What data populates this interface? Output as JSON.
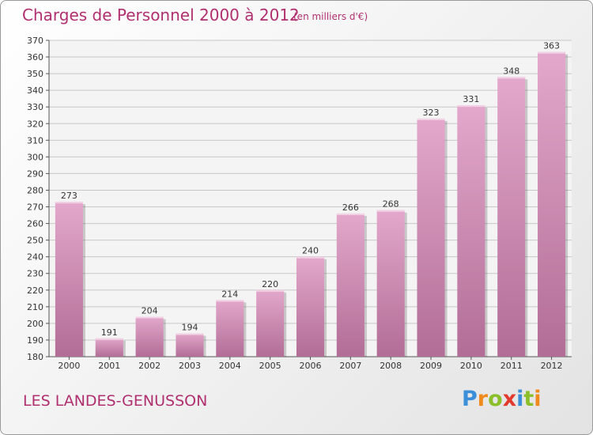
{
  "header": {
    "title": "Charges de Personnel 2000 à 2012",
    "subtitle": "(en milliers d'€)"
  },
  "footer": {
    "location": "LES LANDES-GENUSSON",
    "logo_text": "Proxiti"
  },
  "colors": {
    "bar_top": "#e3a8cc",
    "bar_bottom": "#b26d96",
    "bar_highlight": "#f2d2e4",
    "title": "#b0306f",
    "grid": "#c8c8c8",
    "logo_letters": [
      "#3b8fd9",
      "#f08a1c",
      "#8bbf2a",
      "#e23b2e",
      "#3b8fd9",
      "#8bbf2a",
      "#f08a1c"
    ]
  },
  "chart_data": {
    "type": "bar",
    "title": "Charges de Personnel 2000 à 2012",
    "subtitle": "(en milliers d'€)",
    "categories": [
      "2000",
      "2001",
      "2002",
      "2003",
      "2004",
      "2005",
      "2006",
      "2007",
      "2008",
      "2009",
      "2010",
      "2011",
      "2012"
    ],
    "values": [
      273,
      191,
      204,
      194,
      214,
      220,
      240,
      266,
      268,
      323,
      331,
      348,
      363
    ],
    "xlabel": "",
    "ylabel": "",
    "ylim": [
      180,
      370
    ],
    "yticks": [
      180,
      190,
      200,
      210,
      220,
      230,
      240,
      250,
      260,
      270,
      280,
      290,
      300,
      310,
      320,
      330,
      340,
      350,
      360,
      370
    ],
    "grid": true,
    "data_labels": true
  }
}
